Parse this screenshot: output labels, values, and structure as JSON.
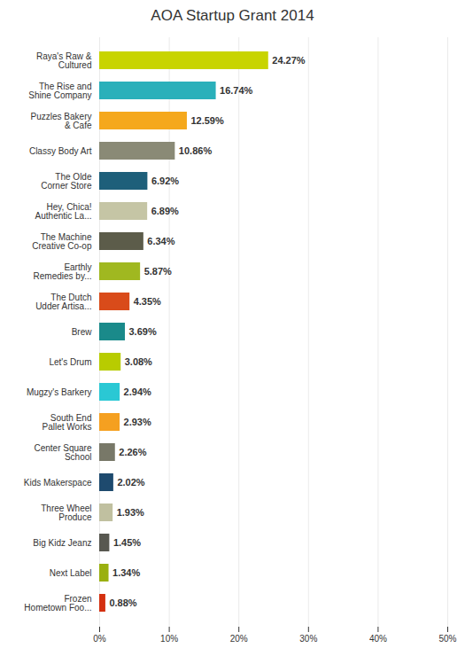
{
  "chart_data": {
    "type": "bar",
    "orientation": "horizontal",
    "title": "AOA Startup Grant 2014",
    "categories": [
      "Raya's Raw &\nCultured",
      "The Rise and\nShine Company",
      "Puzzles Bakery\n& Cafe",
      "Classy Body Art",
      "The Olde\nCorner Store",
      "Hey, Chica!\nAuthentic La...",
      "The Machine\nCreative Co-op",
      "Earthly\nRemedies by...",
      "The Dutch\nUdder Artisa...",
      "Brew",
      "Let's Drum",
      "Mugzy's Barkery",
      "South End\nPallet Works",
      "Center Square\nSchool",
      "Kids Makerspace",
      "Three Wheel\nProduce",
      "Big Kidz Jeanz",
      "Next Label",
      "Frozen\nHometown Foo..."
    ],
    "values": [
      24.27,
      16.74,
      12.59,
      10.86,
      6.92,
      6.89,
      6.34,
      5.87,
      4.35,
      3.69,
      3.08,
      2.94,
      2.93,
      2.26,
      2.02,
      1.93,
      1.45,
      1.34,
      0.88
    ],
    "value_labels": [
      "24.27%",
      "16.74%",
      "12.59%",
      "10.86%",
      "6.92%",
      "6.89%",
      "6.34%",
      "5.87%",
      "4.35%",
      "3.69%",
      "3.08%",
      "2.94%",
      "2.93%",
      "2.26%",
      "2.02%",
      "1.93%",
      "1.45%",
      "1.34%",
      "0.88%"
    ],
    "data_labels": true,
    "colors": [
      "#c8d400",
      "#2ab0ba",
      "#f5a81c",
      "#8a8a76",
      "#1e5f7a",
      "#c5c5a5",
      "#5c5c4a",
      "#a0b820",
      "#d94b1a",
      "#1a8a8a",
      "#b8cc00",
      "#2ac8d4",
      "#f5a020",
      "#787868",
      "#1e4a6e",
      "#c0c0a0",
      "#585850",
      "#9ab010",
      "#d43010"
    ],
    "xlim": [
      0,
      50
    ],
    "xticks": [
      {
        "value": 0,
        "label": "0%"
      },
      {
        "value": 10,
        "label": "10%"
      },
      {
        "value": 20,
        "label": "20%"
      },
      {
        "value": 30,
        "label": "30%"
      },
      {
        "value": 40,
        "label": "40%"
      },
      {
        "value": 50,
        "label": "50%"
      }
    ],
    "grid": true
  }
}
